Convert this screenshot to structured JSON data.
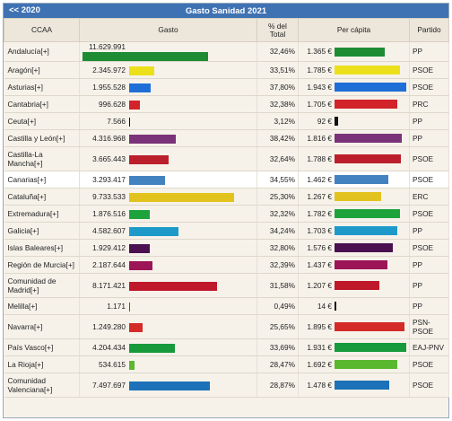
{
  "header": {
    "prev_label": "<<  2020",
    "title": "Gasto Sanidad 2021"
  },
  "columns": {
    "ccaa": "CCAA",
    "gasto": "Gasto",
    "pct": "% del Total",
    "percapita": "Per cápita",
    "partido": "Partido"
  },
  "rows": [
    {
      "name": "Andalucía[+]",
      "gasto": "11.629.991",
      "gasto_value": 11629991,
      "pct": "32,46%",
      "percapita": "1.365 €",
      "percapita_value": 1365,
      "color": "#1e8c33",
      "partido": "PP"
    },
    {
      "name": "Aragón[+]",
      "gasto": "2.345.972",
      "gasto_value": 2345972,
      "pct": "33,51%",
      "percapita": "1.785 €",
      "percapita_value": 1785,
      "color": "#ece01b",
      "partido": "PSOE"
    },
    {
      "name": "Asturias[+]",
      "gasto": "1.955.528",
      "gasto_value": 1955528,
      "pct": "37,80%",
      "percapita": "1.943 €",
      "percapita_value": 1943,
      "color": "#1e6ed8",
      "partido": "PSOE"
    },
    {
      "name": "Cantabria[+]",
      "gasto": "996.628",
      "gasto_value": 996628,
      "pct": "32,38%",
      "percapita": "1.705 €",
      "percapita_value": 1705,
      "color": "#d2232a",
      "partido": "PRC"
    },
    {
      "name": "Ceuta[+]",
      "gasto": "7.566",
      "gasto_value": 7566,
      "pct": "3,12%",
      "percapita": "92 €",
      "percapita_value": 92,
      "color": "#111111",
      "partido": "PP"
    },
    {
      "name": "Castilla y León[+]",
      "gasto": "4.316.968",
      "gasto_value": 4316968,
      "pct": "38,42%",
      "percapita": "1.816 €",
      "percapita_value": 1816,
      "color": "#7a3378",
      "partido": "PP"
    },
    {
      "name": "Castilla-La Mancha[+]",
      "gasto": "3.665.443",
      "gasto_value": 3665443,
      "pct": "32,64%",
      "percapita": "1.788 €",
      "percapita_value": 1788,
      "color": "#bc1f2c",
      "partido": "PSOE"
    },
    {
      "name": "Canarias[+]",
      "gasto": "3.293.417",
      "gasto_value": 3293417,
      "pct": "34,55%",
      "percapita": "1.462 €",
      "percapita_value": 1462,
      "color": "#4382c0",
      "partido": "PSOE"
    },
    {
      "name": "Cataluña[+]",
      "gasto": "9.733.533",
      "gasto_value": 9733533,
      "pct": "25,30%",
      "percapita": "1.267 €",
      "percapita_value": 1267,
      "color": "#e2c31d",
      "partido": "ERC"
    },
    {
      "name": "Extremadura[+]",
      "gasto": "1.876.516",
      "gasto_value": 1876516,
      "pct": "32,32%",
      "percapita": "1.782 €",
      "percapita_value": 1782,
      "color": "#1ea33c",
      "partido": "PSOE"
    },
    {
      "name": "Galicia[+]",
      "gasto": "4.582.607",
      "gasto_value": 4582607,
      "pct": "34,24%",
      "percapita": "1.703 €",
      "percapita_value": 1703,
      "color": "#1d9ac9",
      "partido": "PP"
    },
    {
      "name": "Islas Baleares[+]",
      "gasto": "1.929.412",
      "gasto_value": 1929412,
      "pct": "32,80%",
      "percapita": "1.576 €",
      "percapita_value": 1576,
      "color": "#4a1050",
      "partido": "PSOE"
    },
    {
      "name": "Región de Murcia[+]",
      "gasto": "2.187.644",
      "gasto_value": 2187644,
      "pct": "32,39%",
      "percapita": "1.437 €",
      "percapita_value": 1437,
      "color": "#9c1556",
      "partido": "PP"
    },
    {
      "name": "Comunidad de Madrid[+]",
      "gasto": "8.171.421",
      "gasto_value": 8171421,
      "pct": "31,58%",
      "percapita": "1.207 €",
      "percapita_value": 1207,
      "color": "#c0182b",
      "partido": "PP"
    },
    {
      "name": "Melilla[+]",
      "gasto": "1.171",
      "gasto_value": 1171,
      "pct": "0,49%",
      "percapita": "14 €",
      "percapita_value": 14,
      "color": "#1a5fb4",
      "partido": "PP"
    },
    {
      "name": "Navarra[+]",
      "gasto": "1.249.280",
      "gasto_value": 1249280,
      "pct": "25,65%",
      "percapita": "1.895 €",
      "percapita_value": 1895,
      "color": "#d42a28",
      "partido": "PSN-PSOE"
    },
    {
      "name": "País Vasco[+]",
      "gasto": "4.204.434",
      "gasto_value": 4204434,
      "pct": "33,69%",
      "percapita": "1.931 €",
      "percapita_value": 1931,
      "color": "#179a3b",
      "partido": "EAJ-PNV"
    },
    {
      "name": "La Rioja[+]",
      "gasto": "534.615",
      "gasto_value": 534615,
      "pct": "28,47%",
      "percapita": "1.692 €",
      "percapita_value": 1692,
      "color": "#5ab82e",
      "partido": "PSOE"
    },
    {
      "name": "Comunidad Valenciana[+]",
      "gasto": "7.497.697",
      "gasto_value": 7497697,
      "pct": "28,87%",
      "percapita": "1.478 €",
      "percapita_value": 1478,
      "color": "#1c71b8",
      "partido": "PSOE"
    }
  ],
  "highlight_row": 7,
  "tall_rows": [
    6,
    13,
    15,
    18
  ]
}
